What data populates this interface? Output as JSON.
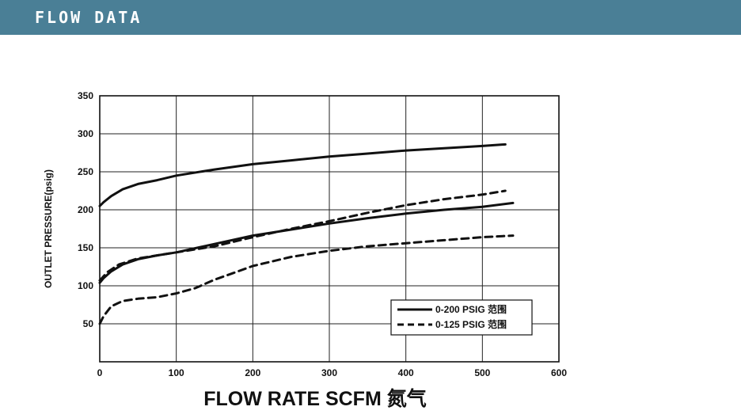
{
  "header": {
    "title": "FLOW DATA"
  },
  "chart_data": {
    "type": "line",
    "xlabel": "FLOW RATE SCFM 氮气",
    "ylabel": "OUTLET PRESSURE(psig)",
    "xlim": [
      0,
      600
    ],
    "ylim": [
      0,
      350
    ],
    "x_ticks": [
      0,
      100,
      200,
      300,
      400,
      500,
      600
    ],
    "y_ticks": [
      50,
      100,
      150,
      200,
      250,
      300,
      350
    ],
    "grid": true,
    "legend_position": "bottom-right",
    "legend": [
      "0-200 PSIG 范围",
      "0-125 PSIG 范围"
    ],
    "series": [
      {
        "legend_index": 0,
        "style": "solid",
        "color": "#111111",
        "points": [
          [
            0,
            205
          ],
          [
            5,
            210
          ],
          [
            15,
            218
          ],
          [
            30,
            227
          ],
          [
            50,
            234
          ],
          [
            75,
            239
          ],
          [
            100,
            245
          ],
          [
            150,
            253
          ],
          [
            200,
            260
          ],
          [
            250,
            265
          ],
          [
            300,
            270
          ],
          [
            350,
            274
          ],
          [
            400,
            278
          ],
          [
            450,
            281
          ],
          [
            500,
            284
          ],
          [
            530,
            286
          ]
        ]
      },
      {
        "legend_index": 0,
        "style": "solid",
        "color": "#111111",
        "points": [
          [
            0,
            104
          ],
          [
            5,
            110
          ],
          [
            15,
            119
          ],
          [
            30,
            128
          ],
          [
            50,
            135
          ],
          [
            75,
            140
          ],
          [
            100,
            144
          ],
          [
            150,
            155
          ],
          [
            200,
            166
          ],
          [
            250,
            174
          ],
          [
            300,
            182
          ],
          [
            350,
            189
          ],
          [
            400,
            195
          ],
          [
            450,
            200
          ],
          [
            500,
            204
          ],
          [
            540,
            209
          ]
        ]
      },
      {
        "legend_index": 1,
        "style": "dashed",
        "color": "#111111",
        "points": [
          [
            0,
            107
          ],
          [
            10,
            118
          ],
          [
            25,
            128
          ],
          [
            50,
            136
          ],
          [
            75,
            140
          ],
          [
            100,
            144
          ],
          [
            150,
            152
          ],
          [
            200,
            164
          ],
          [
            250,
            175
          ],
          [
            300,
            185
          ],
          [
            350,
            196
          ],
          [
            400,
            206
          ],
          [
            450,
            214
          ],
          [
            500,
            220
          ],
          [
            530,
            225
          ]
        ]
      },
      {
        "legend_index": 1,
        "style": "dashed",
        "color": "#111111",
        "points": [
          [
            0,
            50
          ],
          [
            5,
            60
          ],
          [
            15,
            73
          ],
          [
            30,
            80
          ],
          [
            50,
            83
          ],
          [
            75,
            85
          ],
          [
            100,
            90
          ],
          [
            125,
            97
          ],
          [
            150,
            108
          ],
          [
            175,
            117
          ],
          [
            200,
            126
          ],
          [
            250,
            138
          ],
          [
            300,
            146
          ],
          [
            350,
            152
          ],
          [
            400,
            156
          ],
          [
            450,
            160
          ],
          [
            500,
            164
          ],
          [
            540,
            166
          ]
        ]
      }
    ]
  }
}
